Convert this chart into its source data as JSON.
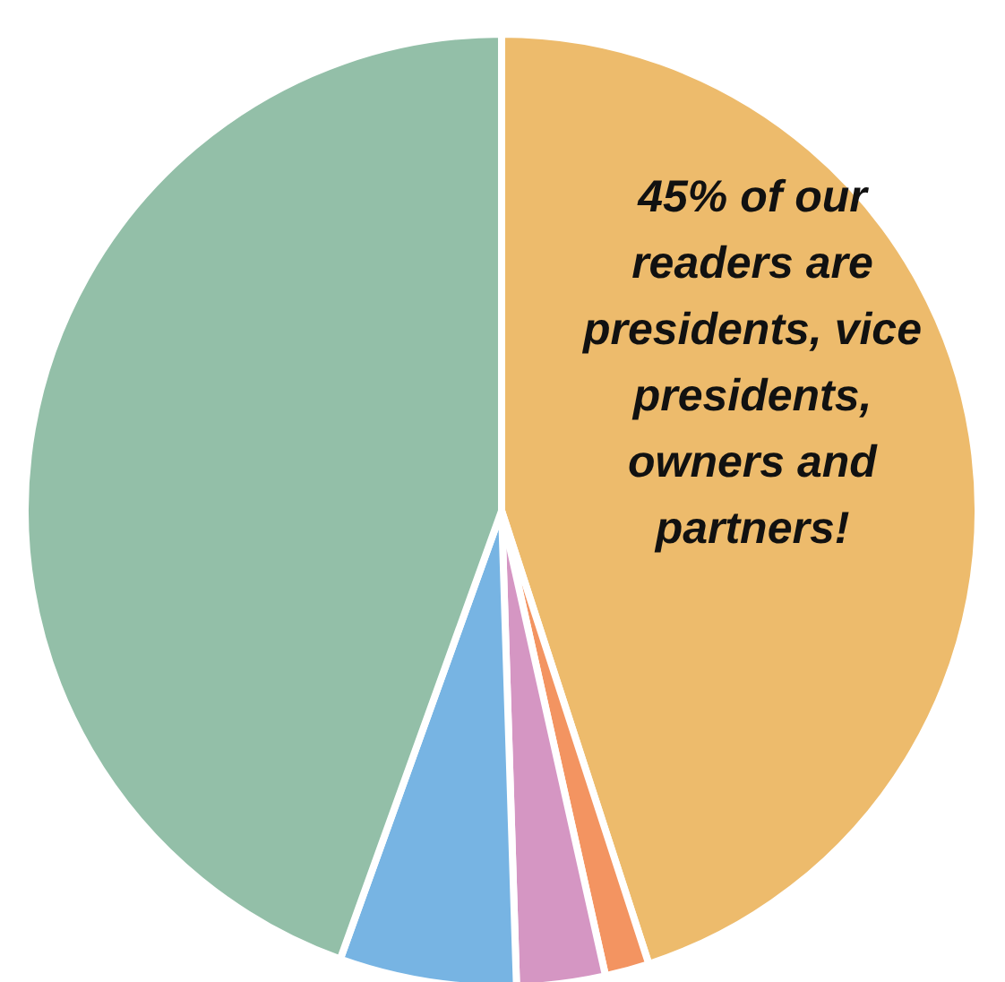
{
  "chart_data": {
    "type": "pie",
    "categories": [
      null,
      null,
      null,
      null,
      null
    ],
    "values": [
      45,
      1.5,
      3,
      6,
      44.5
    ],
    "colors": [
      "#edbb6c",
      "#f39461",
      "#d596c3",
      "#77b4e3",
      "#93bfa8"
    ],
    "annotations": [
      "45% of our readers are presidents, vice presidents, owners and partners!"
    ]
  }
}
